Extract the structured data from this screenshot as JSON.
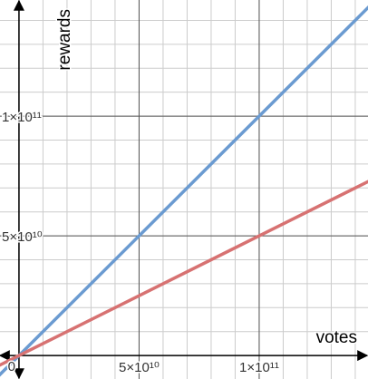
{
  "chart_data": {
    "type": "line",
    "x_label": "votes",
    "y_label": "rewards",
    "x": [
      -10000000000,
      150000000000
    ],
    "series": [
      {
        "color": "#6b9bd1",
        "values": [
          -10000000000,
          150000000000
        ]
      },
      {
        "color": "#d77272",
        "values": [
          -5000000000,
          75000000000
        ]
      }
    ],
    "xlim": [
      -7900000000,
      145300000000
    ],
    "ylim": [
      -9800000000,
      148500000000
    ],
    "xticks": [
      {
        "value": 0,
        "label": "0"
      },
      {
        "value": 50000000000,
        "label": "5×10¹⁰"
      },
      {
        "value": 100000000000,
        "label": "1×10¹¹"
      }
    ],
    "yticks": [
      {
        "value": 50000000000,
        "label": "5×10¹⁰"
      },
      {
        "value": 100000000000,
        "label": "1×10¹¹"
      }
    ],
    "grid": true,
    "minor_grid": 10000000000
  }
}
